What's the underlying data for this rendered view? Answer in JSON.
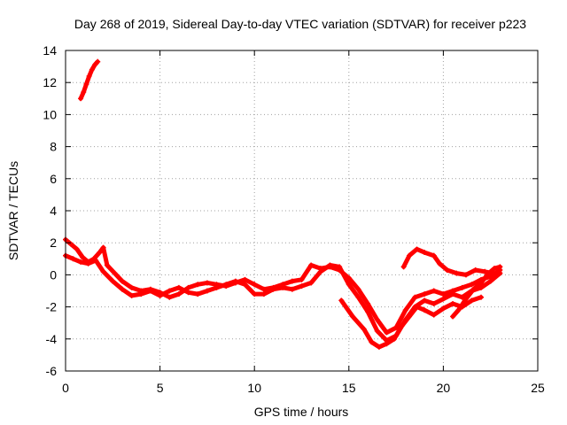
{
  "chart_data": {
    "type": "scatter",
    "title": "Day 268 of 2019, Sidereal Day-to-day VTEC variation (SDTVAR) for receiver p223",
    "xlabel": "GPS time / hours",
    "ylabel": "SDTVAR / TECUs",
    "xlim": [
      0,
      25
    ],
    "ylim": [
      -6,
      14
    ],
    "x_ticks": [
      0,
      5,
      10,
      15,
      20,
      25
    ],
    "y_ticks": [
      -6,
      -4,
      -2,
      0,
      2,
      4,
      6,
      8,
      10,
      12,
      14
    ],
    "grid": true,
    "series_color": "#ff0000",
    "series": [
      {
        "name": "early-high-arc",
        "points": [
          [
            0.8,
            11.0
          ],
          [
            0.95,
            11.4
          ],
          [
            1.1,
            11.9
          ],
          [
            1.25,
            12.4
          ],
          [
            1.4,
            12.8
          ],
          [
            1.55,
            13.1
          ],
          [
            1.7,
            13.3
          ]
        ]
      },
      {
        "name": "main-trace-a",
        "points": [
          [
            0.0,
            2.2
          ],
          [
            0.3,
            1.9
          ],
          [
            0.6,
            1.6
          ],
          [
            0.9,
            1.1
          ],
          [
            1.2,
            0.8
          ],
          [
            1.5,
            1.0
          ],
          [
            1.8,
            1.4
          ],
          [
            2.0,
            1.7
          ],
          [
            2.2,
            0.6
          ],
          [
            2.6,
            0.1
          ],
          [
            3.0,
            -0.4
          ],
          [
            3.5,
            -0.8
          ],
          [
            4.0,
            -1.0
          ],
          [
            4.5,
            -0.9
          ],
          [
            5.0,
            -1.1
          ],
          [
            5.5,
            -1.4
          ],
          [
            6.0,
            -1.2
          ],
          [
            6.5,
            -0.8
          ],
          [
            7.0,
            -0.6
          ],
          [
            7.5,
            -0.5
          ],
          [
            8.0,
            -0.6
          ],
          [
            8.5,
            -0.7
          ],
          [
            9.0,
            -0.5
          ],
          [
            9.5,
            -0.3
          ],
          [
            10.0,
            -0.6
          ],
          [
            10.5,
            -0.9
          ],
          [
            11.0,
            -0.8
          ],
          [
            11.5,
            -0.6
          ],
          [
            12.0,
            -0.4
          ],
          [
            12.5,
            -0.3
          ],
          [
            13.0,
            0.6
          ],
          [
            13.5,
            0.4
          ],
          [
            14.0,
            0.5
          ],
          [
            14.5,
            0.3
          ],
          [
            15.0,
            -0.2
          ],
          [
            15.5,
            -0.9
          ],
          [
            16.0,
            -1.8
          ],
          [
            16.5,
            -2.8
          ],
          [
            17.0,
            -3.6
          ],
          [
            17.5,
            -3.3
          ],
          [
            18.0,
            -2.2
          ],
          [
            18.5,
            -1.4
          ],
          [
            19.0,
            -1.2
          ],
          [
            19.5,
            -1.0
          ],
          [
            20.0,
            -1.2
          ],
          [
            20.5,
            -1.0
          ],
          [
            21.0,
            -0.8
          ],
          [
            21.5,
            -0.6
          ],
          [
            22.0,
            -0.3
          ],
          [
            22.5,
            -0.1
          ],
          [
            23.0,
            0.3
          ]
        ]
      },
      {
        "name": "main-trace-b",
        "points": [
          [
            0.0,
            1.2
          ],
          [
            0.4,
            1.0
          ],
          [
            0.8,
            0.8
          ],
          [
            1.2,
            0.7
          ],
          [
            1.6,
            0.9
          ],
          [
            2.0,
            0.2
          ],
          [
            2.5,
            -0.4
          ],
          [
            3.0,
            -0.9
          ],
          [
            3.5,
            -1.3
          ],
          [
            4.0,
            -1.2
          ],
          [
            4.5,
            -1.0
          ],
          [
            5.0,
            -1.3
          ],
          [
            5.5,
            -1.0
          ],
          [
            6.0,
            -0.8
          ],
          [
            6.5,
            -1.1
          ],
          [
            7.0,
            -1.2
          ],
          [
            7.5,
            -1.0
          ],
          [
            8.0,
            -0.8
          ],
          [
            8.5,
            -0.6
          ],
          [
            9.0,
            -0.4
          ],
          [
            9.5,
            -0.6
          ],
          [
            10.0,
            -1.2
          ],
          [
            10.5,
            -1.2
          ],
          [
            11.0,
            -0.9
          ],
          [
            11.5,
            -0.8
          ],
          [
            12.0,
            -0.9
          ],
          [
            12.5,
            -0.7
          ],
          [
            13.0,
            -0.5
          ],
          [
            13.5,
            0.2
          ],
          [
            14.0,
            0.6
          ],
          [
            14.5,
            0.5
          ],
          [
            15.0,
            -0.6
          ],
          [
            15.5,
            -1.4
          ],
          [
            16.0,
            -2.3
          ],
          [
            16.5,
            -3.5
          ],
          [
            17.0,
            -4.1
          ],
          [
            17.5,
            -3.8
          ],
          [
            18.0,
            -2.8
          ],
          [
            18.5,
            -2.0
          ],
          [
            19.0,
            -1.6
          ],
          [
            19.5,
            -1.8
          ],
          [
            20.0,
            -1.5
          ],
          [
            20.5,
            -1.2
          ],
          [
            21.0,
            -1.4
          ],
          [
            21.5,
            -1.0
          ],
          [
            22.0,
            -0.8
          ],
          [
            22.5,
            -0.4
          ],
          [
            23.0,
            0.1
          ]
        ]
      },
      {
        "name": "dip-branch",
        "points": [
          [
            14.6,
            -1.6
          ],
          [
            15.2,
            -2.6
          ],
          [
            15.8,
            -3.4
          ],
          [
            16.2,
            -4.2
          ],
          [
            16.6,
            -4.5
          ],
          [
            17.0,
            -4.3
          ],
          [
            17.4,
            -4.0
          ],
          [
            17.8,
            -3.2
          ],
          [
            18.2,
            -2.6
          ],
          [
            18.6,
            -2.0
          ],
          [
            19.0,
            -2.2
          ],
          [
            19.5,
            -2.5
          ],
          [
            20.0,
            -2.1
          ],
          [
            20.5,
            -1.8
          ],
          [
            21.0,
            -2.0
          ],
          [
            21.5,
            -1.6
          ],
          [
            22.0,
            -1.4
          ]
        ]
      },
      {
        "name": "late-arc",
        "points": [
          [
            17.9,
            0.5
          ],
          [
            18.2,
            1.2
          ],
          [
            18.6,
            1.6
          ],
          [
            19.0,
            1.4
          ],
          [
            19.5,
            1.2
          ],
          [
            19.8,
            0.7
          ],
          [
            20.2,
            0.3
          ],
          [
            20.7,
            0.1
          ],
          [
            21.2,
            0.0
          ],
          [
            21.7,
            0.3
          ],
          [
            22.2,
            0.2
          ],
          [
            22.6,
            0.1
          ]
        ]
      },
      {
        "name": "tail-cluster",
        "points": [
          [
            20.5,
            -2.6
          ],
          [
            20.8,
            -2.2
          ],
          [
            21.2,
            -1.5
          ],
          [
            21.6,
            -0.9
          ],
          [
            22.0,
            -0.5
          ],
          [
            22.4,
            0.1
          ],
          [
            22.7,
            0.4
          ],
          [
            23.0,
            0.5
          ]
        ]
      }
    ]
  }
}
